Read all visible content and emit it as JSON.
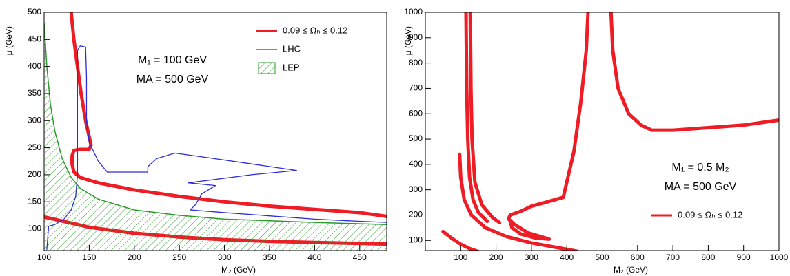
{
  "chart_data": [
    {
      "type": "line",
      "xlabel": "M₂ (GeV)",
      "ylabel": "μ (GeV)",
      "xlim": [
        100,
        480
      ],
      "ylim": [
        60,
        500
      ],
      "xticks": [
        100,
        150,
        200,
        250,
        300,
        350,
        400,
        450
      ],
      "yticks": [
        100,
        150,
        200,
        250,
        300,
        350,
        400,
        450,
        500
      ],
      "annotations": [
        "M₁ = 100 GeV",
        "MA = 500 GeV"
      ],
      "legend": "upper right",
      "series": [
        {
          "name": "0.09 ≤ Ωₕ ≤ 0.12",
          "color": "#ee1c25",
          "x": [
            130,
            133,
            137,
            141,
            146,
            150,
            152,
            150,
            140,
            133,
            131,
            131,
            133,
            140,
            160,
            200,
            250,
            300,
            350,
            400,
            450,
            480,
            null,
            100,
            150,
            200,
            250,
            300,
            350,
            400,
            480
          ],
          "values": [
            500,
            450,
            400,
            350,
            300,
            270,
            255,
            247,
            247,
            245,
            235,
            220,
            205,
            195,
            185,
            172,
            160,
            150,
            142,
            136,
            130,
            123,
            null,
            122,
            103,
            92,
            85,
            80,
            77,
            75,
            72
          ]
        },
        {
          "name": "LHC",
          "color": "#2b2bd9",
          "x": [
            103,
            105,
            112,
            122,
            130,
            135,
            137,
            137,
            140,
            146,
            147,
            147,
            150,
            160,
            170,
            215,
            215,
            225,
            245,
            280,
            330,
            380,
            330,
            260,
            290,
            275,
            268,
            262,
            300,
            350,
            400,
            450,
            480
          ],
          "values": [
            62,
            105,
            108,
            118,
            135,
            160,
            200,
            430,
            438,
            436,
            380,
            300,
            260,
            225,
            205,
            205,
            215,
            230,
            240,
            232,
            220,
            208,
            200,
            185,
            180,
            165,
            145,
            135,
            130,
            124,
            118,
            114,
            112
          ]
        },
        {
          "name": "LEP",
          "color": "#2a9a2a",
          "style": "hatched",
          "x": [
            100,
            103,
            107,
            112,
            120,
            130,
            140,
            160,
            200,
            250,
            300,
            350,
            400,
            480
          ],
          "values": [
            480,
            400,
            330,
            280,
            230,
            195,
            175,
            155,
            135,
            125,
            118,
            115,
            112,
            108
          ]
        }
      ]
    },
    {
      "type": "line",
      "xlabel": "M₂ (GeV)",
      "ylabel": "μ (GeV)",
      "xlim": [
        0,
        1000
      ],
      "ylim": [
        60,
        1000
      ],
      "xticks": [
        100,
        200,
        300,
        400,
        500,
        600,
        700,
        800,
        900,
        1000
      ],
      "yticks": [
        100,
        200,
        300,
        400,
        500,
        600,
        700,
        800,
        900,
        1000
      ],
      "annotations": [
        "M₁ = 0.5 M₂",
        "MA = 500 GeV"
      ],
      "legend": "lower right",
      "series": [
        {
          "name": "0.09 ≤ Ωₕ ≤ 0.12",
          "color": "#ee1c25",
          "x": [
            50,
            75,
            100,
            125,
            150,
            null,
            115,
            117,
            120,
            125,
            135,
            150,
            175,
            null,
            127,
            129,
            132,
            140,
            160,
            190,
            210,
            null,
            97,
            100,
            110,
            130,
            170,
            230,
            300,
            400,
            430,
            null,
            460,
            455,
            440,
            420,
            400,
            390,
            340,
            300,
            270,
            240,
            235,
            250,
            290,
            350,
            310,
            270,
            245,
            240,
            null,
            525,
            530,
            545,
            575,
            610,
            640,
            700,
            800,
            900,
            1000
          ],
          "values": [
            135,
            108,
            85,
            68,
            56,
            null,
            1000,
            700,
            500,
            350,
            260,
            210,
            175,
            null,
            1000,
            700,
            500,
            330,
            240,
            190,
            170,
            null,
            440,
            350,
            260,
            200,
            150,
            115,
            90,
            65,
            57,
            null,
            1000,
            850,
            650,
            450,
            330,
            270,
            250,
            235,
            215,
            200,
            185,
            165,
            130,
            105,
            110,
            125,
            150,
            175,
            null,
            1000,
            850,
            700,
            600,
            555,
            535,
            535,
            545,
            555,
            575
          ]
        }
      ]
    }
  ]
}
